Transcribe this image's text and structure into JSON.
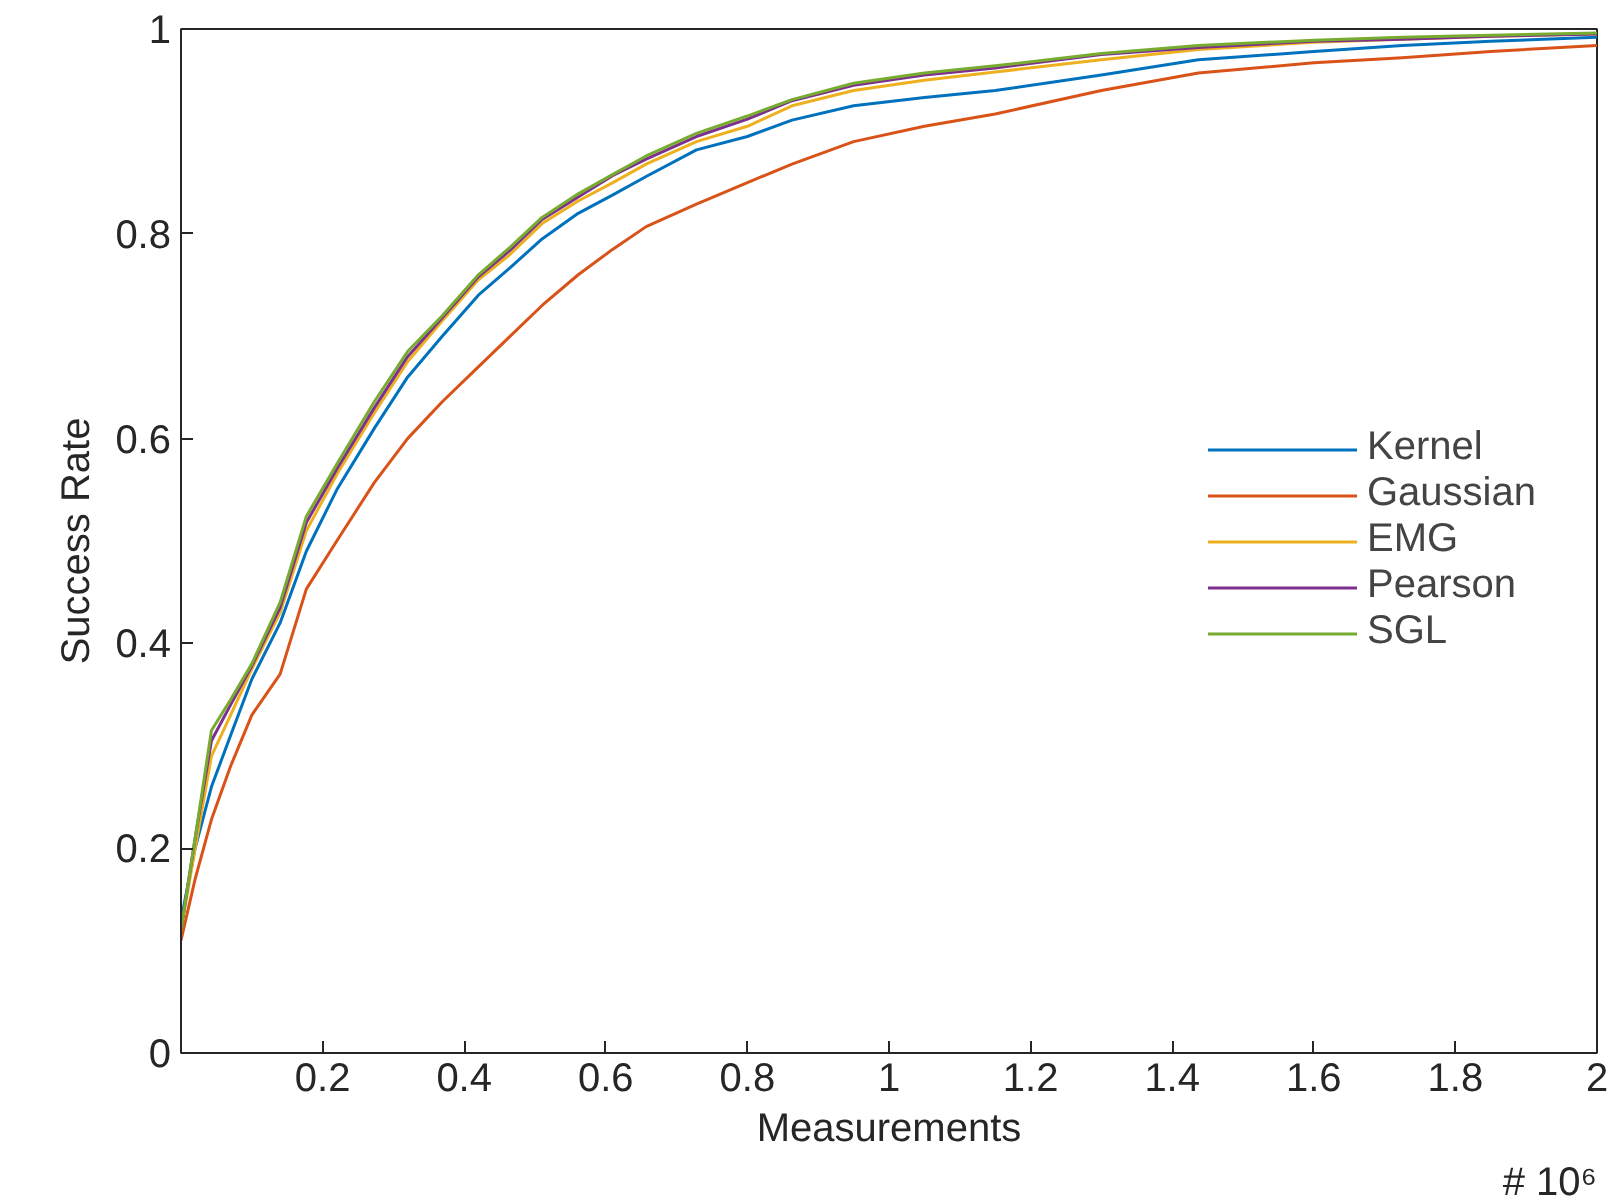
{
  "chart_data": {
    "type": "line",
    "xlabel": "Measurements",
    "ylabel": "Success Rate",
    "annotations": [
      "# 10⁶"
    ],
    "x": [
      0,
      0.02,
      0.043,
      0.07,
      0.1,
      0.14,
      0.177,
      0.22,
      0.273,
      0.32,
      0.369,
      0.42,
      0.465,
      0.51,
      0.561,
      0.61,
      0.657,
      0.728,
      0.8,
      0.863,
      0.95,
      1.05,
      1.15,
      1.3,
      1.437,
      1.6,
      1.725,
      1.85,
      2.0
    ],
    "series": [
      {
        "name": "Kernel",
        "color": "#0072bd",
        "values": [
          0.13,
          0.2,
          0.26,
          0.31,
          0.365,
          0.42,
          0.49,
          0.55,
          0.61,
          0.66,
          0.7,
          0.74,
          0.767,
          0.795,
          0.82,
          0.838,
          0.856,
          0.882,
          0.895,
          0.911,
          0.925,
          0.933,
          0.94,
          0.955,
          0.97,
          0.978,
          0.984,
          0.988,
          0.992
        ]
      },
      {
        "name": "Gaussian",
        "color": "#d95319",
        "values": [
          0.11,
          0.17,
          0.228,
          0.28,
          0.33,
          0.37,
          0.453,
          0.5,
          0.557,
          0.6,
          0.636,
          0.67,
          0.7,
          0.73,
          0.76,
          0.785,
          0.807,
          0.829,
          0.85,
          0.868,
          0.89,
          0.905,
          0.917,
          0.94,
          0.957,
          0.967,
          0.972,
          0.978,
          0.984
        ]
      },
      {
        "name": "EMG",
        "color": "#edb120",
        "values": [
          0.12,
          0.2,
          0.29,
          0.33,
          0.375,
          0.43,
          0.51,
          0.565,
          0.625,
          0.675,
          0.715,
          0.755,
          0.78,
          0.81,
          0.832,
          0.85,
          0.868,
          0.89,
          0.905,
          0.925,
          0.94,
          0.95,
          0.958,
          0.97,
          0.98,
          0.987,
          0.99,
          0.993,
          0.995
        ]
      },
      {
        "name": "Pearson",
        "color": "#7e2f8e",
        "values": [
          0.12,
          0.21,
          0.305,
          0.34,
          0.378,
          0.435,
          0.518,
          0.57,
          0.63,
          0.68,
          0.718,
          0.758,
          0.784,
          0.814,
          0.836,
          0.857,
          0.873,
          0.895,
          0.912,
          0.93,
          0.945,
          0.955,
          0.962,
          0.975,
          0.982,
          0.988,
          0.99,
          0.993,
          0.995
        ]
      },
      {
        "name": "SGL",
        "color": "#77ac30",
        "values": [
          0.12,
          0.21,
          0.315,
          0.345,
          0.38,
          0.44,
          0.524,
          0.575,
          0.636,
          0.685,
          0.72,
          0.76,
          0.787,
          0.816,
          0.839,
          0.858,
          0.876,
          0.898,
          0.915,
          0.931,
          0.947,
          0.957,
          0.964,
          0.976,
          0.984,
          0.989,
          0.992,
          0.994,
          0.996
        ]
      }
    ],
    "xlim": [
      0,
      2
    ],
    "ylim": [
      0,
      1
    ],
    "xticks": [
      0.2,
      0.4,
      0.6,
      0.8,
      1,
      1.2,
      1.4,
      1.6,
      1.8,
      2
    ],
    "yticks": [
      0,
      0.2,
      0.4,
      0.6,
      0.8,
      1
    ],
    "legend": "right",
    "grid": false,
    "marker": "none",
    "line_style": "solid"
  }
}
